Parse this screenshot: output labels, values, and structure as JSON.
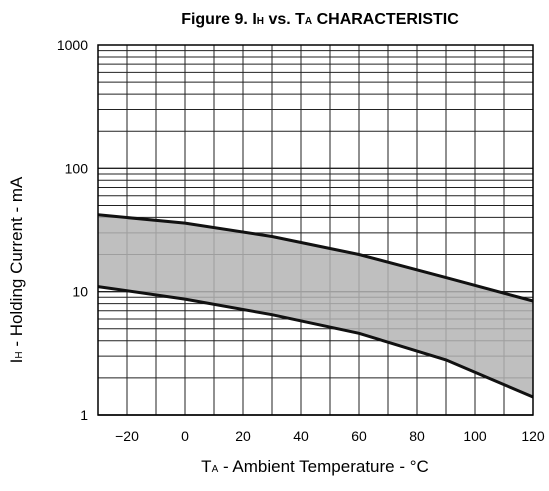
{
  "chart_data": {
    "type": "area",
    "title": {
      "lead": "Figure 9.  I",
      "sub1": "H",
      "mid": " vs. T",
      "sub2": "A",
      "tail": " CHARACTERISTIC"
    },
    "xlabel": {
      "main": "T",
      "sub": "A",
      "rest": " - Ambient Temperature - °C"
    },
    "ylabel": {
      "main": "I",
      "sub": "H",
      "rest": " - Holding Current - mA"
    },
    "x_scale": "linear",
    "y_scale": "log",
    "xlim": [
      -30,
      120
    ],
    "ylim": [
      1,
      1000
    ],
    "grid": true,
    "x_ticks": [
      -20,
      0,
      20,
      40,
      60,
      80,
      100,
      120
    ],
    "x_tick_labels": [
      "−20",
      "0",
      "20",
      "40",
      "60",
      "80",
      "100",
      "120"
    ],
    "y_ticks": [
      1,
      10,
      100,
      1000
    ],
    "y_tick_labels": [
      "1",
      "10",
      "100",
      "1000"
    ],
    "band": {
      "x": [
        -30,
        0,
        30,
        60,
        90,
        120
      ],
      "upper": [
        42,
        36,
        28,
        20,
        13,
        8.4
      ],
      "lower": [
        11,
        8.7,
        6.5,
        4.6,
        2.8,
        1.4
      ]
    },
    "colors": {
      "band_fill": "#b4b4b4",
      "line": "#111111",
      "grid": "#222222"
    }
  }
}
